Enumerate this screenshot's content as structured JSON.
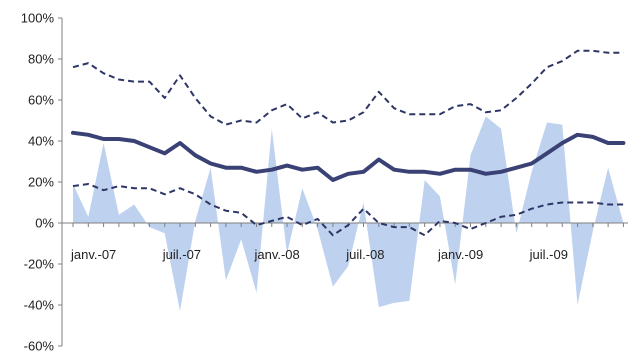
{
  "chart_data": {
    "type": "line",
    "title": "",
    "xlabel": "",
    "ylabel": "",
    "ylim": [
      -60,
      100
    ],
    "y_ticks": [
      -60,
      -40,
      -20,
      0,
      20,
      40,
      60,
      80,
      100
    ],
    "y_tick_labels": [
      "-60%",
      "-40%",
      "-20%",
      "0%",
      "20%",
      "40%",
      "60%",
      "80%",
      "100%"
    ],
    "x_tick_labels": [
      {
        "label": "janv.-07",
        "index": 0
      },
      {
        "label": "juil.-07",
        "index": 6
      },
      {
        "label": "janv.-08",
        "index": 12
      },
      {
        "label": "juil.-08",
        "index": 18
      },
      {
        "label": "janv.-09",
        "index": 24
      },
      {
        "label": "juil.-09",
        "index": 30
      }
    ],
    "categories": [
      "2007-01",
      "2007-02",
      "2007-03",
      "2007-04",
      "2007-05",
      "2007-06",
      "2007-07",
      "2007-08",
      "2007-09",
      "2007-10",
      "2007-11",
      "2007-12",
      "2008-01",
      "2008-02",
      "2008-03",
      "2008-04",
      "2008-05",
      "2008-06",
      "2008-07",
      "2008-08",
      "2008-09",
      "2008-10",
      "2008-11",
      "2008-12",
      "2009-01",
      "2009-02",
      "2009-03",
      "2009-04",
      "2009-05",
      "2009-06",
      "2009-07",
      "2009-08",
      "2009-09",
      "2009-10",
      "2009-11",
      "2009-12",
      "2010-01"
    ],
    "grid": false,
    "legend": "none",
    "series": [
      {
        "type": "area",
        "color": "#bed2ef",
        "values": [
          19,
          3,
          39,
          4,
          9,
          -2,
          -5,
          -43,
          1,
          27,
          -28,
          -8,
          -34,
          46,
          -15,
          17,
          -3,
          -31,
          -21,
          10,
          -41,
          -39,
          -38,
          21,
          13,
          -30,
          33,
          52,
          46,
          -5,
          25,
          49,
          48,
          -40,
          -4,
          27,
          0
        ]
      },
      {
        "type": "line",
        "style": "dashed",
        "color": "#2e3666",
        "values": [
          76,
          78,
          73,
          70,
          69,
          69,
          61,
          72,
          61,
          52,
          48,
          50,
          49,
          55,
          58,
          51,
          54,
          49,
          50,
          54,
          64,
          56,
          53,
          53,
          53,
          57,
          58,
          54,
          55,
          61,
          68,
          76,
          79,
          84,
          84,
          83,
          83
        ]
      },
      {
        "type": "line",
        "style": "solid",
        "color": "#3a4175",
        "values": [
          44,
          43,
          41,
          41,
          40,
          37,
          34,
          39,
          33,
          29,
          27,
          27,
          25,
          26,
          28,
          26,
          27,
          21,
          24,
          25,
          31,
          26,
          25,
          25,
          24,
          26,
          26,
          24,
          25,
          27,
          29,
          34,
          39,
          43,
          42,
          39,
          39
        ]
      },
      {
        "type": "line",
        "style": "dashed",
        "color": "#2e3666",
        "values": [
          18,
          19,
          16,
          18,
          17,
          17,
          14,
          17,
          14,
          9,
          6,
          5,
          -1,
          1,
          3,
          -1,
          2,
          -6,
          -1,
          7,
          0,
          -2,
          -2,
          -6,
          1,
          0,
          -3,
          0,
          3,
          4,
          7,
          9,
          10,
          10,
          10,
          9,
          9
        ]
      }
    ]
  }
}
